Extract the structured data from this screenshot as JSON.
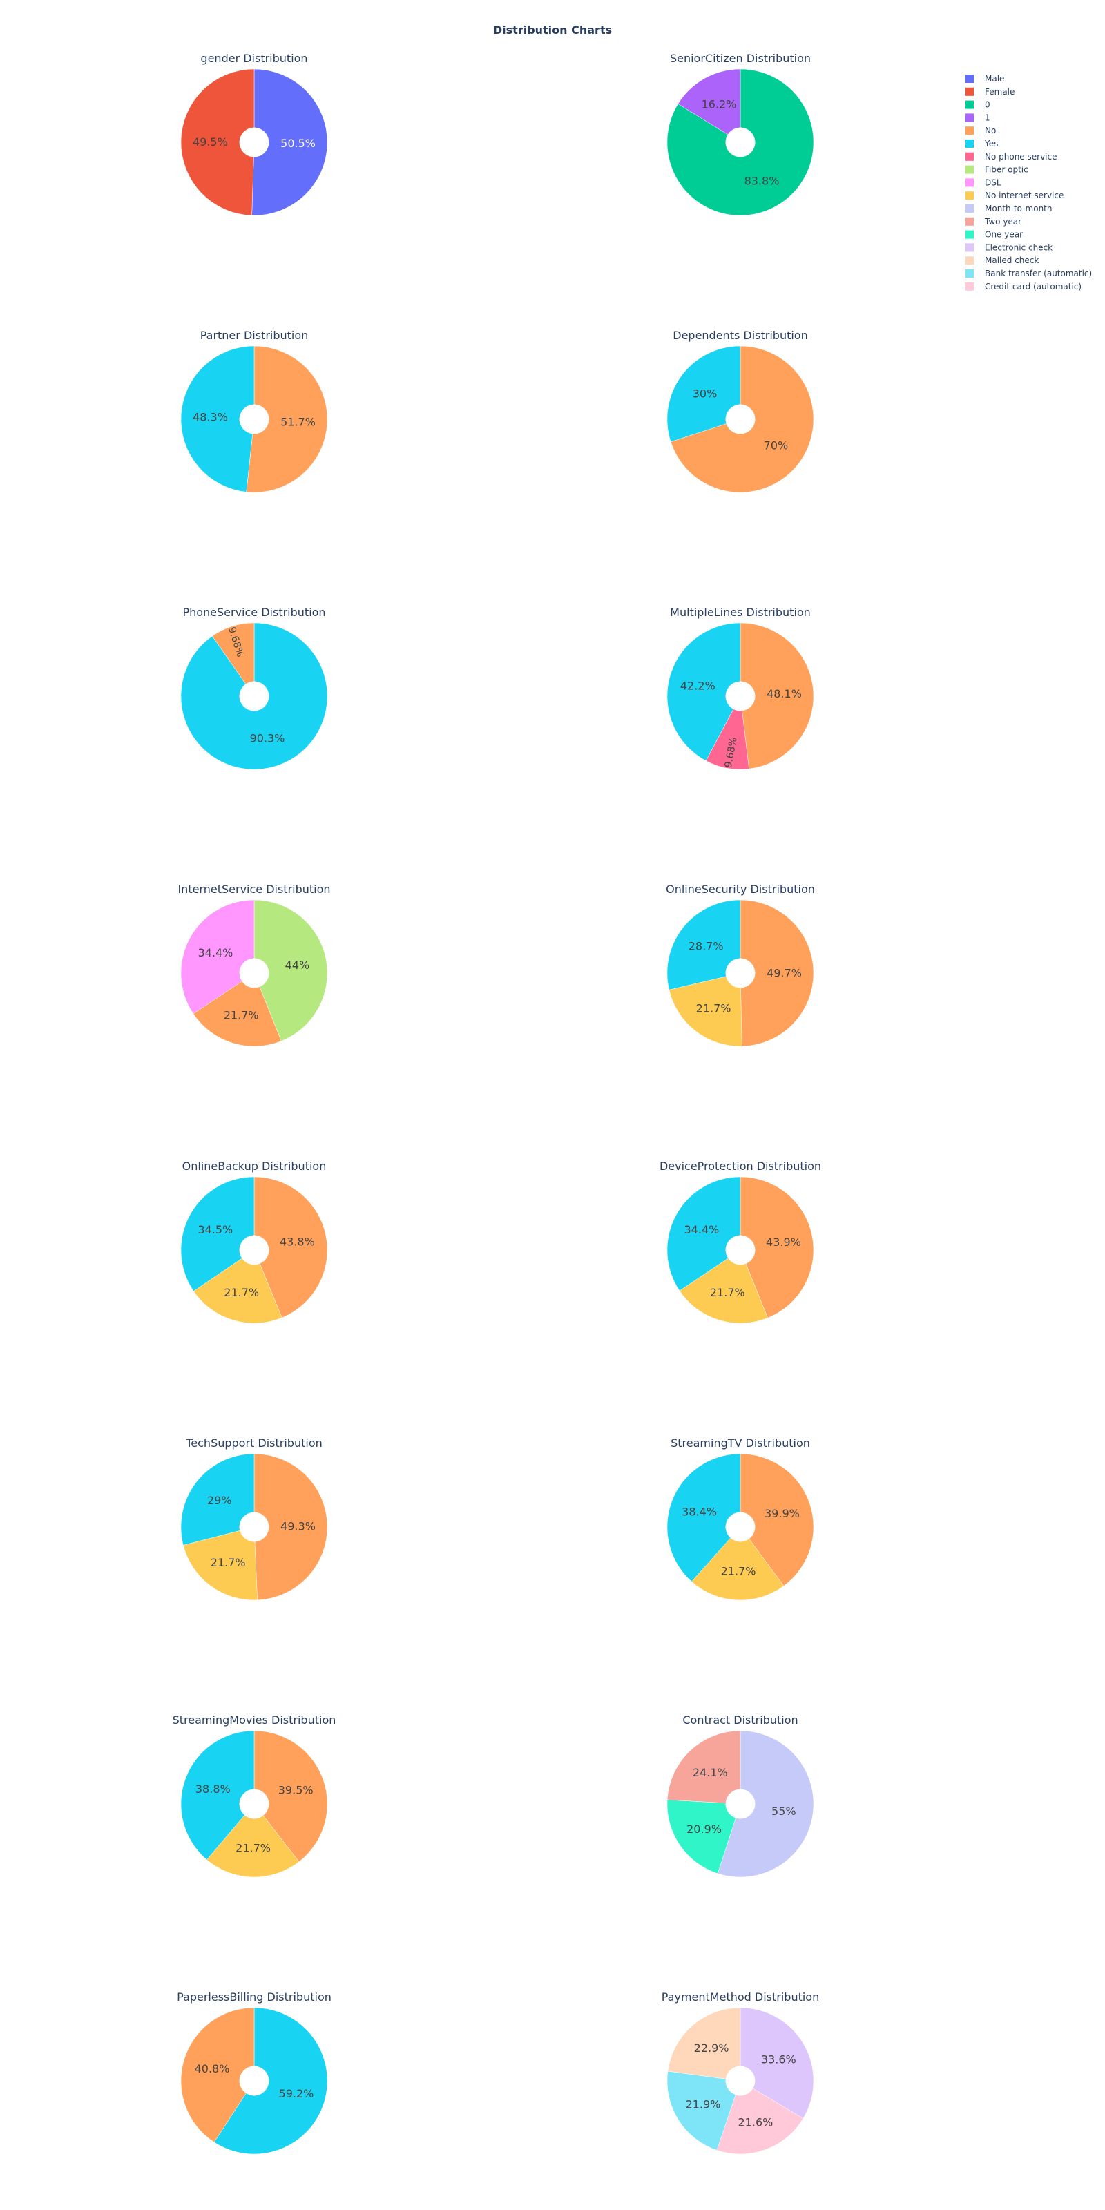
{
  "title": "Distribution Charts",
  "colors": {
    "Male": "#636efa",
    "Female": "#ef553b",
    "0": "#00cc96",
    "1": "#ab63fa",
    "No": "#ffa15a",
    "Yes": "#19d3f3",
    "No phone service": "#ff6692",
    "Fiber optic": "#b6e880",
    "DSL": "#ff97ff",
    "No internet service": "#fecb52",
    "Month-to-month": "#c6caf9",
    "Two year": "#f7a59a",
    "One year": "#2ff5c8",
    "Electronic check": "#ddc6fb",
    "Mailed check": "#ffd8bc",
    "Bank transfer (automatic)": "#7ee5f8",
    "Credit card (automatic)": "#ffc9d9"
  },
  "legend": {
    "position": "top-right",
    "items": [
      "Male",
      "Female",
      "0",
      "1",
      "No",
      "Yes",
      "No phone service",
      "Fiber optic",
      "DSL",
      "No internet service",
      "Month-to-month",
      "Two year",
      "One year",
      "Electronic check",
      "Mailed check",
      "Bank transfer (automatic)",
      "Credit card (automatic)"
    ]
  },
  "chart_data": [
    {
      "type": "pie",
      "title": "gender Distribution",
      "hole": 0.2,
      "slices": [
        {
          "label": "Male",
          "value": 50.5
        },
        {
          "label": "Female",
          "value": 49.5
        }
      ]
    },
    {
      "type": "pie",
      "title": "SeniorCitizen Distribution",
      "hole": 0.2,
      "slices": [
        {
          "label": "0",
          "value": 83.8
        },
        {
          "label": "1",
          "value": 16.2
        }
      ]
    },
    {
      "type": "pie",
      "title": "Partner Distribution",
      "hole": 0.2,
      "slices": [
        {
          "label": "No",
          "value": 51.7
        },
        {
          "label": "Yes",
          "value": 48.3
        }
      ]
    },
    {
      "type": "pie",
      "title": "Dependents Distribution",
      "hole": 0.2,
      "slices": [
        {
          "label": "No",
          "value": 70
        },
        {
          "label": "Yes",
          "value": 30
        }
      ]
    },
    {
      "type": "pie",
      "title": "PhoneService Distribution",
      "hole": 0.2,
      "slices": [
        {
          "label": "Yes",
          "value": 90.3
        },
        {
          "label": "No",
          "value": 9.68
        }
      ]
    },
    {
      "type": "pie",
      "title": "MultipleLines Distribution",
      "hole": 0.2,
      "slices": [
        {
          "label": "No",
          "value": 48.1
        },
        {
          "label": "No phone service",
          "value": 9.68
        },
        {
          "label": "Yes",
          "value": 42.2
        }
      ]
    },
    {
      "type": "pie",
      "title": "InternetService Distribution",
      "hole": 0.2,
      "slices": [
        {
          "label": "Fiber optic",
          "value": 44
        },
        {
          "label": "No",
          "value": 21.7
        },
        {
          "label": "DSL",
          "value": 34.4
        }
      ]
    },
    {
      "type": "pie",
      "title": "OnlineSecurity Distribution",
      "hole": 0.2,
      "slices": [
        {
          "label": "No",
          "value": 49.7
        },
        {
          "label": "No internet service",
          "value": 21.7
        },
        {
          "label": "Yes",
          "value": 28.7
        }
      ]
    },
    {
      "type": "pie",
      "title": "OnlineBackup Distribution",
      "hole": 0.2,
      "slices": [
        {
          "label": "No",
          "value": 43.8
        },
        {
          "label": "No internet service",
          "value": 21.7
        },
        {
          "label": "Yes",
          "value": 34.5
        }
      ]
    },
    {
      "type": "pie",
      "title": "DeviceProtection Distribution",
      "hole": 0.2,
      "slices": [
        {
          "label": "No",
          "value": 43.9
        },
        {
          "label": "No internet service",
          "value": 21.7
        },
        {
          "label": "Yes",
          "value": 34.4
        }
      ]
    },
    {
      "type": "pie",
      "title": "TechSupport Distribution",
      "hole": 0.2,
      "slices": [
        {
          "label": "No",
          "value": 49.3
        },
        {
          "label": "No internet service",
          "value": 21.7
        },
        {
          "label": "Yes",
          "value": 29
        }
      ]
    },
    {
      "type": "pie",
      "title": "StreamingTV Distribution",
      "hole": 0.2,
      "slices": [
        {
          "label": "No",
          "value": 39.9
        },
        {
          "label": "No internet service",
          "value": 21.7
        },
        {
          "label": "Yes",
          "value": 38.4
        }
      ]
    },
    {
      "type": "pie",
      "title": "StreamingMovies Distribution",
      "hole": 0.2,
      "slices": [
        {
          "label": "No",
          "value": 39.5
        },
        {
          "label": "No internet service",
          "value": 21.7
        },
        {
          "label": "Yes",
          "value": 38.8
        }
      ]
    },
    {
      "type": "pie",
      "title": "Contract Distribution",
      "hole": 0.2,
      "slices": [
        {
          "label": "Month-to-month",
          "value": 55
        },
        {
          "label": "One year",
          "value": 20.9
        },
        {
          "label": "Two year",
          "value": 24.1
        }
      ]
    },
    {
      "type": "pie",
      "title": "PaperlessBilling Distribution",
      "hole": 0.2,
      "slices": [
        {
          "label": "Yes",
          "value": 59.2
        },
        {
          "label": "No",
          "value": 40.8
        }
      ]
    },
    {
      "type": "pie",
      "title": "PaymentMethod Distribution",
      "hole": 0.2,
      "slices": [
        {
          "label": "Electronic check",
          "value": 33.6
        },
        {
          "label": "Credit card (automatic)",
          "value": 21.6
        },
        {
          "label": "Bank transfer (automatic)",
          "value": 21.9
        },
        {
          "label": "Mailed check",
          "value": 22.9
        }
      ]
    }
  ]
}
